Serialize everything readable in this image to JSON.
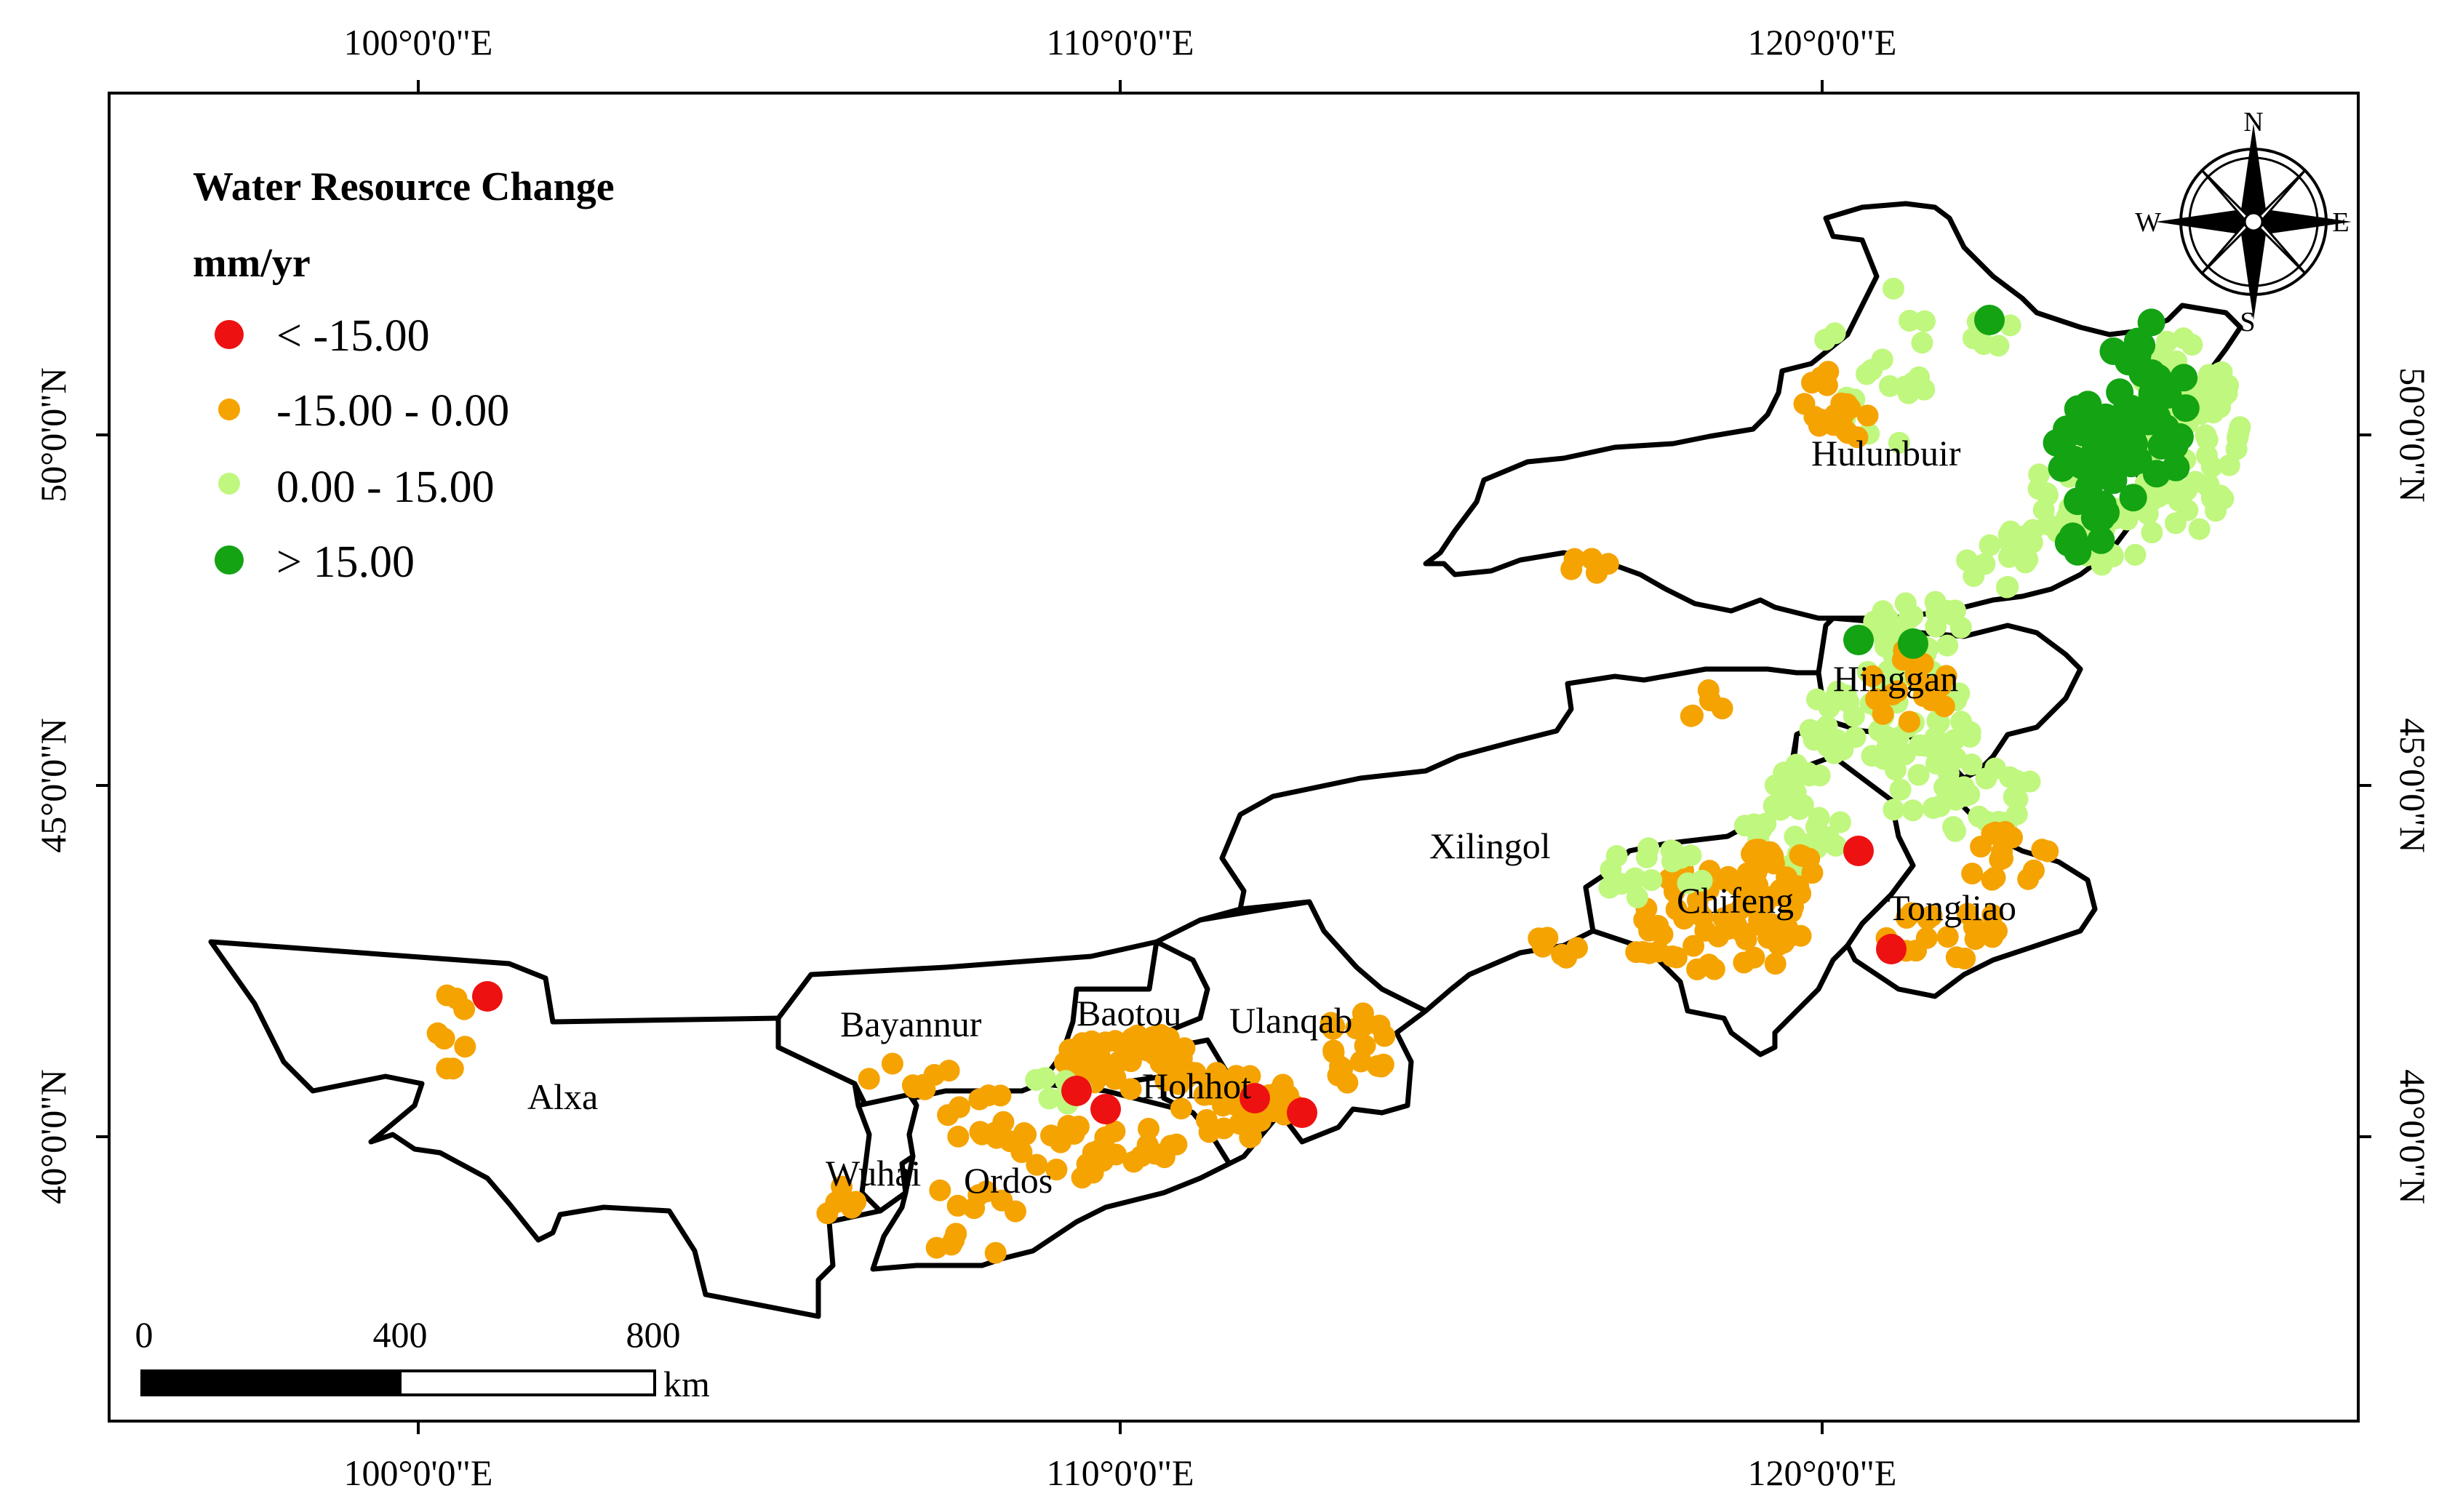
{
  "lon_labels": [
    "100°0'0\"E",
    "110°0'0\"E",
    "120°0'0\"E"
  ],
  "lat_labels": [
    "50°0'0\"N",
    "45°0'0\"N",
    "40°0'0\"N"
  ],
  "legend": {
    "title": "Water Resource Change",
    "unit": "mm/yr",
    "items": [
      {
        "label": "< -15.00",
        "color": "#ee1111"
      },
      {
        "label": "-15.00 - 0.00",
        "color": "#f5a300"
      },
      {
        "label": "0.00 - 15.00",
        "color": "#c0f77e"
      },
      {
        "label": "> 15.00",
        "color": "#13a313"
      }
    ]
  },
  "regions": [
    "Hulunbuir",
    "Hinggan",
    "Xilingol",
    "Chifeng",
    "Tongliao",
    "Ulanqab",
    "Baotou",
    "Hohhot",
    "Bayannur",
    "Alxa",
    "Wuhai",
    "Ordos"
  ],
  "scale_bar": {
    "labels": [
      "0",
      "400",
      "800"
    ],
    "unit": "km"
  },
  "compass": {
    "n": "N",
    "s": "S",
    "e": "E",
    "w": "W"
  }
}
